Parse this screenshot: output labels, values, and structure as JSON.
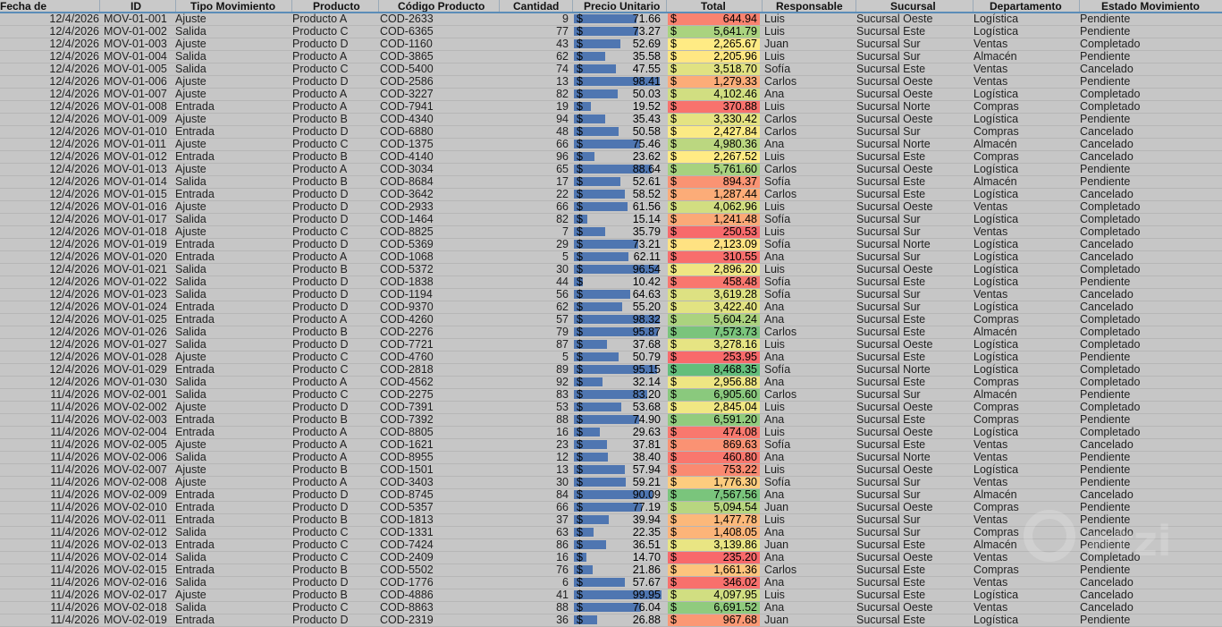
{
  "headers": [
    "Fecha de",
    "ID",
    "Tipo Movimiento",
    "Producto",
    "Código Producto",
    "Cantidad",
    "Precio Unitario",
    "Total",
    "Responsable",
    "Sucursal",
    "Departamento",
    "Estado Movimiento"
  ],
  "currency_symbol": "$",
  "total_scale_colors": {
    "low": "#f8696b",
    "mid": "#ffeb84",
    "high": "#63be7b"
  },
  "price_bar_color": "#4f76b1",
  "watermark_text": "atzi",
  "rows": [
    [
      "12/4/2026",
      "MOV-01-001",
      "Ajuste",
      "Producto A",
      "COD-2633",
      "9",
      "71.66",
      "644.94",
      "Luis",
      "Sucursal Oeste",
      "Logística",
      "Pendiente"
    ],
    [
      "12/4/2026",
      "MOV-01-002",
      "Salida",
      "Producto C",
      "COD-6365",
      "77",
      "73.27",
      "5,641.79",
      "Luis",
      "Sucursal Este",
      "Logística",
      "Pendiente"
    ],
    [
      "12/4/2026",
      "MOV-01-003",
      "Ajuste",
      "Producto D",
      "COD-1160",
      "43",
      "52.69",
      "2,265.67",
      "Juan",
      "Sucursal Sur",
      "Ventas",
      "Completado"
    ],
    [
      "12/4/2026",
      "MOV-01-004",
      "Salida",
      "Producto A",
      "COD-3865",
      "62",
      "35.58",
      "2,205.96",
      "Luis",
      "Sucursal Sur",
      "Almacén",
      "Pendiente"
    ],
    [
      "12/4/2026",
      "MOV-01-005",
      "Salida",
      "Producto C",
      "COD-5400",
      "74",
      "47.55",
      "3,518.70",
      "Sofía",
      "Sucursal Este",
      "Ventas",
      "Cancelado"
    ],
    [
      "12/4/2026",
      "MOV-01-006",
      "Ajuste",
      "Producto D",
      "COD-2586",
      "13",
      "98.41",
      "1,279.33",
      "Carlos",
      "Sucursal Oeste",
      "Ventas",
      "Pendiente"
    ],
    [
      "12/4/2026",
      "MOV-01-007",
      "Ajuste",
      "Producto A",
      "COD-3227",
      "82",
      "50.03",
      "4,102.46",
      "Ana",
      "Sucursal Oeste",
      "Logística",
      "Completado"
    ],
    [
      "12/4/2026",
      "MOV-01-008",
      "Entrada",
      "Producto A",
      "COD-7941",
      "19",
      "19.52",
      "370.88",
      "Luis",
      "Sucursal Norte",
      "Compras",
      "Completado"
    ],
    [
      "12/4/2026",
      "MOV-01-009",
      "Ajuste",
      "Producto B",
      "COD-4340",
      "94",
      "35.43",
      "3,330.42",
      "Carlos",
      "Sucursal Oeste",
      "Logística",
      "Pendiente"
    ],
    [
      "12/4/2026",
      "MOV-01-010",
      "Entrada",
      "Producto D",
      "COD-6880",
      "48",
      "50.58",
      "2,427.84",
      "Carlos",
      "Sucursal Sur",
      "Compras",
      "Cancelado"
    ],
    [
      "12/4/2026",
      "MOV-01-011",
      "Ajuste",
      "Producto C",
      "COD-1375",
      "66",
      "75.46",
      "4,980.36",
      "Ana",
      "Sucursal Norte",
      "Almacén",
      "Cancelado"
    ],
    [
      "12/4/2026",
      "MOV-01-012",
      "Entrada",
      "Producto B",
      "COD-4140",
      "96",
      "23.62",
      "2,267.52",
      "Luis",
      "Sucursal Este",
      "Compras",
      "Cancelado"
    ],
    [
      "12/4/2026",
      "MOV-01-013",
      "Ajuste",
      "Producto A",
      "COD-3034",
      "65",
      "88.64",
      "5,761.60",
      "Carlos",
      "Sucursal Oeste",
      "Logística",
      "Pendiente"
    ],
    [
      "12/4/2026",
      "MOV-01-014",
      "Salida",
      "Producto B",
      "COD-8684",
      "17",
      "52.61",
      "894.37",
      "Sofía",
      "Sucursal Este",
      "Almacén",
      "Pendiente"
    ],
    [
      "12/4/2026",
      "MOV-01-015",
      "Entrada",
      "Producto D",
      "COD-3642",
      "22",
      "58.52",
      "1,287.44",
      "Carlos",
      "Sucursal Este",
      "Logística",
      "Cancelado"
    ],
    [
      "12/4/2026",
      "MOV-01-016",
      "Ajuste",
      "Producto D",
      "COD-2933",
      "66",
      "61.56",
      "4,062.96",
      "Luis",
      "Sucursal Oeste",
      "Ventas",
      "Completado"
    ],
    [
      "12/4/2026",
      "MOV-01-017",
      "Salida",
      "Producto D",
      "COD-1464",
      "82",
      "15.14",
      "1,241.48",
      "Sofía",
      "Sucursal Sur",
      "Logística",
      "Completado"
    ],
    [
      "12/4/2026",
      "MOV-01-018",
      "Ajuste",
      "Producto C",
      "COD-8825",
      "7",
      "35.79",
      "250.53",
      "Luis",
      "Sucursal Sur",
      "Ventas",
      "Completado"
    ],
    [
      "12/4/2026",
      "MOV-01-019",
      "Entrada",
      "Producto D",
      "COD-5369",
      "29",
      "73.21",
      "2,123.09",
      "Sofía",
      "Sucursal Norte",
      "Logística",
      "Cancelado"
    ],
    [
      "12/4/2026",
      "MOV-01-020",
      "Entrada",
      "Producto A",
      "COD-1068",
      "5",
      "62.11",
      "310.55",
      "Ana",
      "Sucursal Sur",
      "Logística",
      "Cancelado"
    ],
    [
      "12/4/2026",
      "MOV-01-021",
      "Salida",
      "Producto B",
      "COD-5372",
      "30",
      "96.54",
      "2,896.20",
      "Luis",
      "Sucursal Oeste",
      "Logística",
      "Completado"
    ],
    [
      "12/4/2026",
      "MOV-01-022",
      "Salida",
      "Producto D",
      "COD-1838",
      "44",
      "10.42",
      "458.48",
      "Sofía",
      "Sucursal Este",
      "Logística",
      "Pendiente"
    ],
    [
      "12/4/2026",
      "MOV-01-023",
      "Salida",
      "Producto D",
      "COD-1194",
      "56",
      "64.63",
      "3,619.28",
      "Sofía",
      "Sucursal Sur",
      "Ventas",
      "Cancelado"
    ],
    [
      "12/4/2026",
      "MOV-01-024",
      "Entrada",
      "Producto D",
      "COD-9370",
      "62",
      "55.20",
      "3,422.40",
      "Ana",
      "Sucursal Sur",
      "Logística",
      "Cancelado"
    ],
    [
      "12/4/2026",
      "MOV-01-025",
      "Entrada",
      "Producto A",
      "COD-4260",
      "57",
      "98.32",
      "5,604.24",
      "Ana",
      "Sucursal Este",
      "Compras",
      "Completado"
    ],
    [
      "12/4/2026",
      "MOV-01-026",
      "Salida",
      "Producto B",
      "COD-2276",
      "79",
      "95.87",
      "7,573.73",
      "Carlos",
      "Sucursal Este",
      "Almacén",
      "Completado"
    ],
    [
      "12/4/2026",
      "MOV-01-027",
      "Salida",
      "Producto D",
      "COD-7721",
      "87",
      "37.68",
      "3,278.16",
      "Luis",
      "Sucursal Oeste",
      "Logística",
      "Completado"
    ],
    [
      "12/4/2026",
      "MOV-01-028",
      "Ajuste",
      "Producto C",
      "COD-4760",
      "5",
      "50.79",
      "253.95",
      "Ana",
      "Sucursal Este",
      "Logística",
      "Pendiente"
    ],
    [
      "12/4/2026",
      "MOV-01-029",
      "Entrada",
      "Producto C",
      "COD-2818",
      "89",
      "95.15",
      "8,468.35",
      "Sofía",
      "Sucursal Norte",
      "Logística",
      "Completado"
    ],
    [
      "12/4/2026",
      "MOV-01-030",
      "Salida",
      "Producto A",
      "COD-4562",
      "92",
      "32.14",
      "2,956.88",
      "Ana",
      "Sucursal Este",
      "Compras",
      "Completado"
    ],
    [
      "11/4/2026",
      "MOV-02-001",
      "Salida",
      "Producto C",
      "COD-2275",
      "83",
      "83.20",
      "6,905.60",
      "Carlos",
      "Sucursal Sur",
      "Almacén",
      "Pendiente"
    ],
    [
      "11/4/2026",
      "MOV-02-002",
      "Ajuste",
      "Producto D",
      "COD-7391",
      "53",
      "53.68",
      "2,845.04",
      "Luis",
      "Sucursal Oeste",
      "Compras",
      "Completado"
    ],
    [
      "11/4/2026",
      "MOV-02-003",
      "Entrada",
      "Producto B",
      "COD-7392",
      "88",
      "74.90",
      "6,591.20",
      "Ana",
      "Sucursal Este",
      "Compras",
      "Pendiente"
    ],
    [
      "11/4/2026",
      "MOV-02-004",
      "Entrada",
      "Producto A",
      "COD-8805",
      "16",
      "29.63",
      "474.08",
      "Luis",
      "Sucursal Oeste",
      "Logística",
      "Completado"
    ],
    [
      "11/4/2026",
      "MOV-02-005",
      "Ajuste",
      "Producto A",
      "COD-1621",
      "23",
      "37.81",
      "869.63",
      "Sofía",
      "Sucursal Este",
      "Ventas",
      "Cancelado"
    ],
    [
      "11/4/2026",
      "MOV-02-006",
      "Salida",
      "Producto A",
      "COD-8955",
      "12",
      "38.40",
      "460.80",
      "Ana",
      "Sucursal Norte",
      "Ventas",
      "Pendiente"
    ],
    [
      "11/4/2026",
      "MOV-02-007",
      "Ajuste",
      "Producto B",
      "COD-1501",
      "13",
      "57.94",
      "753.22",
      "Luis",
      "Sucursal Oeste",
      "Logística",
      "Pendiente"
    ],
    [
      "11/4/2026",
      "MOV-02-008",
      "Ajuste",
      "Producto A",
      "COD-3403",
      "30",
      "59.21",
      "1,776.30",
      "Sofía",
      "Sucursal Sur",
      "Ventas",
      "Pendiente"
    ],
    [
      "11/4/2026",
      "MOV-02-009",
      "Entrada",
      "Producto D",
      "COD-8745",
      "84",
      "90.09",
      "7,567.56",
      "Ana",
      "Sucursal Sur",
      "Almacén",
      "Cancelado"
    ],
    [
      "11/4/2026",
      "MOV-02-010",
      "Entrada",
      "Producto D",
      "COD-5357",
      "66",
      "77.19",
      "5,094.54",
      "Juan",
      "Sucursal Oeste",
      "Compras",
      "Pendiente"
    ],
    [
      "11/4/2026",
      "MOV-02-011",
      "Entrada",
      "Producto B",
      "COD-1813",
      "37",
      "39.94",
      "1,477.78",
      "Luis",
      "Sucursal Sur",
      "Ventas",
      "Pendiente"
    ],
    [
      "11/4/2026",
      "MOV-02-012",
      "Salida",
      "Producto C",
      "COD-1331",
      "63",
      "22.35",
      "1,408.05",
      "Ana",
      "Sucursal Sur",
      "Compras",
      "Cancelado"
    ],
    [
      "11/4/2026",
      "MOV-02-013",
      "Entrada",
      "Producto C",
      "COD-7424",
      "86",
      "36.51",
      "3,139.86",
      "Juan",
      "Sucursal Este",
      "Almacén",
      "Pendiente"
    ],
    [
      "11/4/2026",
      "MOV-02-014",
      "Salida",
      "Producto C",
      "COD-2409",
      "16",
      "14.70",
      "235.20",
      "Ana",
      "Sucursal Oeste",
      "Ventas",
      "Completado"
    ],
    [
      "11/4/2026",
      "MOV-02-015",
      "Entrada",
      "Producto B",
      "COD-5502",
      "76",
      "21.86",
      "1,661.36",
      "Carlos",
      "Sucursal Este",
      "Compras",
      "Pendiente"
    ],
    [
      "11/4/2026",
      "MOV-02-016",
      "Salida",
      "Producto D",
      "COD-1776",
      "6",
      "57.67",
      "346.02",
      "Ana",
      "Sucursal Este",
      "Ventas",
      "Cancelado"
    ],
    [
      "11/4/2026",
      "MOV-02-017",
      "Ajuste",
      "Producto B",
      "COD-4886",
      "41",
      "99.95",
      "4,097.95",
      "Luis",
      "Sucursal Este",
      "Logística",
      "Cancelado"
    ],
    [
      "11/4/2026",
      "MOV-02-018",
      "Salida",
      "Producto C",
      "COD-8863",
      "88",
      "76.04",
      "6,691.52",
      "Ana",
      "Sucursal Oeste",
      "Ventas",
      "Cancelado"
    ],
    [
      "11/4/2026",
      "MOV-02-019",
      "Entrada",
      "Producto D",
      "COD-2319",
      "36",
      "26.88",
      "967.68",
      "Juan",
      "Sucursal Este",
      "Logística",
      "Pendiente"
    ]
  ]
}
